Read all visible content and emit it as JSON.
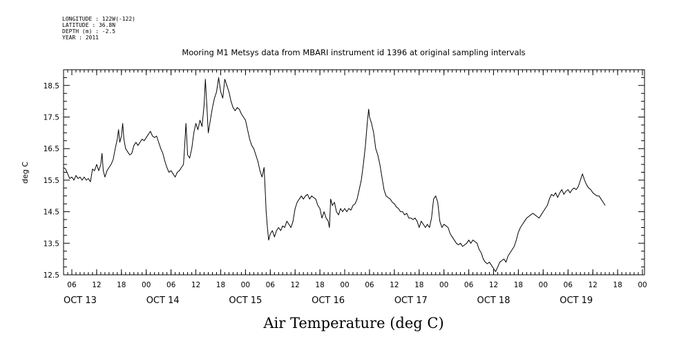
{
  "header": {
    "meta_lines": [
      "LONGITUDE : 122W(-122)",
      "LATITUDE : 36.8N",
      "DEPTH (m) : -2.5",
      "YEAR : 2011"
    ],
    "title": "Mooring M1 Metsys data from MBARI instrument id 1396 at original sampling intervals"
  },
  "chart_data": {
    "type": "line",
    "title": "Mooring M1 Metsys data from MBARI instrument id 1396 at original sampling intervals",
    "xlabel": "Air Temperature (deg C)",
    "ylabel": "deg C",
    "x_unit": "hours since OCT 13 2011 00:00",
    "xlim": [
      4,
      144.5
    ],
    "ylim": [
      12.5,
      19.0
    ],
    "yticks": [
      12.5,
      13.5,
      14.5,
      15.5,
      16.5,
      17.5,
      18.5
    ],
    "ytick_labels": [
      "12.5",
      "13.5",
      "14.5",
      "15.5",
      "16.5",
      "17.5",
      "18.5"
    ],
    "hour_ticks": [
      6,
      12,
      18,
      24,
      30,
      36,
      42,
      48,
      54,
      60,
      66,
      72,
      78,
      84,
      90,
      96,
      102,
      108,
      114,
      120,
      126,
      132,
      138,
      144
    ],
    "hour_tick_labels": [
      "06",
      "12",
      "18",
      "00",
      "06",
      "12",
      "18",
      "00",
      "06",
      "12",
      "18",
      "00",
      "06",
      "12",
      "18",
      "00",
      "06",
      "12",
      "18",
      "00",
      "06",
      "12",
      "18",
      "00"
    ],
    "days": [
      {
        "label": "OCT 13",
        "x": 8
      },
      {
        "label": "OCT 14",
        "x": 28
      },
      {
        "label": "OCT 15",
        "x": 48
      },
      {
        "label": "OCT 16",
        "x": 68
      },
      {
        "label": "OCT 17",
        "x": 88
      },
      {
        "label": "OCT 18",
        "x": 108
      },
      {
        "label": "OCT 19",
        "x": 128
      }
    ],
    "grid": false,
    "series": [
      {
        "color": "#000000",
        "points": [
          [
            4.0,
            15.9
          ],
          [
            4.5,
            15.85
          ],
          [
            5.0,
            15.7
          ],
          [
            5.5,
            15.55
          ],
          [
            6.0,
            15.6
          ],
          [
            6.5,
            15.5
          ],
          [
            7.0,
            15.65
          ],
          [
            7.5,
            15.55
          ],
          [
            8.0,
            15.6
          ],
          [
            8.5,
            15.5
          ],
          [
            9.0,
            15.6
          ],
          [
            9.5,
            15.5
          ],
          [
            10.0,
            15.55
          ],
          [
            10.5,
            15.45
          ],
          [
            11.0,
            15.85
          ],
          [
            11.5,
            15.8
          ],
          [
            12.0,
            16.0
          ],
          [
            12.5,
            15.8
          ],
          [
            13.0,
            16.0
          ],
          [
            13.3,
            16.35
          ],
          [
            13.6,
            15.8
          ],
          [
            14.0,
            15.6
          ],
          [
            14.5,
            15.8
          ],
          [
            15.0,
            15.9
          ],
          [
            15.5,
            16.0
          ],
          [
            16.0,
            16.15
          ],
          [
            16.5,
            16.5
          ],
          [
            17.0,
            16.8
          ],
          [
            17.3,
            17.1
          ],
          [
            17.6,
            16.7
          ],
          [
            18.0,
            16.9
          ],
          [
            18.3,
            17.3
          ],
          [
            18.6,
            16.8
          ],
          [
            19.0,
            16.5
          ],
          [
            19.5,
            16.4
          ],
          [
            20.0,
            16.3
          ],
          [
            20.5,
            16.35
          ],
          [
            21.0,
            16.6
          ],
          [
            21.5,
            16.7
          ],
          [
            22.0,
            16.6
          ],
          [
            22.5,
            16.7
          ],
          [
            23.0,
            16.8
          ],
          [
            23.5,
            16.75
          ],
          [
            24.0,
            16.85
          ],
          [
            24.5,
            16.95
          ],
          [
            25.0,
            17.05
          ],
          [
            25.5,
            16.9
          ],
          [
            26.0,
            16.85
          ],
          [
            26.5,
            16.9
          ],
          [
            27.0,
            16.7
          ],
          [
            27.5,
            16.5
          ],
          [
            28.0,
            16.35
          ],
          [
            28.5,
            16.1
          ],
          [
            29.0,
            15.9
          ],
          [
            29.5,
            15.75
          ],
          [
            30.0,
            15.8
          ],
          [
            30.5,
            15.7
          ],
          [
            31.0,
            15.6
          ],
          [
            31.5,
            15.75
          ],
          [
            32.0,
            15.8
          ],
          [
            32.5,
            15.9
          ],
          [
            33.0,
            16.0
          ],
          [
            33.3,
            16.6
          ],
          [
            33.6,
            17.3
          ],
          [
            34.0,
            16.3
          ],
          [
            34.5,
            16.2
          ],
          [
            35.0,
            16.5
          ],
          [
            35.5,
            17.0
          ],
          [
            36.0,
            17.3
          ],
          [
            36.5,
            17.1
          ],
          [
            37.0,
            17.4
          ],
          [
            37.5,
            17.2
          ],
          [
            38.0,
            17.9
          ],
          [
            38.3,
            18.7
          ],
          [
            38.6,
            18.0
          ],
          [
            39.0,
            17.0
          ],
          [
            39.5,
            17.4
          ],
          [
            40.0,
            17.8
          ],
          [
            40.5,
            18.1
          ],
          [
            41.0,
            18.3
          ],
          [
            41.5,
            18.75
          ],
          [
            42.0,
            18.3
          ],
          [
            42.5,
            18.1
          ],
          [
            43.0,
            18.7
          ],
          [
            43.5,
            18.5
          ],
          [
            44.0,
            18.3
          ],
          [
            44.5,
            18.0
          ],
          [
            45.0,
            17.8
          ],
          [
            45.5,
            17.7
          ],
          [
            46.0,
            17.8
          ],
          [
            46.5,
            17.75
          ],
          [
            47.0,
            17.6
          ],
          [
            47.5,
            17.5
          ],
          [
            48.0,
            17.4
          ],
          [
            48.5,
            17.1
          ],
          [
            49.0,
            16.8
          ],
          [
            49.5,
            16.6
          ],
          [
            50.0,
            16.5
          ],
          [
            50.5,
            16.3
          ],
          [
            51.0,
            16.1
          ],
          [
            51.5,
            15.8
          ],
          [
            52.0,
            15.6
          ],
          [
            52.5,
            15.9
          ],
          [
            52.8,
            15.1
          ],
          [
            53.0,
            14.5
          ],
          [
            53.3,
            14.0
          ],
          [
            53.6,
            13.6
          ],
          [
            54.0,
            13.8
          ],
          [
            54.5,
            13.9
          ],
          [
            55.0,
            13.7
          ],
          [
            55.5,
            13.9
          ],
          [
            56.0,
            14.0
          ],
          [
            56.5,
            13.9
          ],
          [
            57.0,
            14.05
          ],
          [
            57.5,
            14.0
          ],
          [
            58.0,
            14.2
          ],
          [
            58.5,
            14.1
          ],
          [
            59.0,
            14.0
          ],
          [
            59.5,
            14.2
          ],
          [
            60.0,
            14.6
          ],
          [
            60.5,
            14.8
          ],
          [
            61.0,
            14.9
          ],
          [
            61.5,
            15.0
          ],
          [
            62.0,
            14.9
          ],
          [
            62.5,
            15.0
          ],
          [
            63.0,
            15.05
          ],
          [
            63.5,
            14.9
          ],
          [
            64.0,
            15.0
          ],
          [
            64.5,
            14.95
          ],
          [
            65.0,
            14.9
          ],
          [
            65.5,
            14.7
          ],
          [
            66.0,
            14.6
          ],
          [
            66.5,
            14.3
          ],
          [
            67.0,
            14.5
          ],
          [
            67.5,
            14.3
          ],
          [
            68.0,
            14.2
          ],
          [
            68.3,
            14.0
          ],
          [
            68.6,
            14.9
          ],
          [
            69.0,
            14.7
          ],
          [
            69.5,
            14.8
          ],
          [
            70.0,
            14.5
          ],
          [
            70.5,
            14.4
          ],
          [
            71.0,
            14.6
          ],
          [
            71.5,
            14.5
          ],
          [
            72.0,
            14.6
          ],
          [
            72.5,
            14.5
          ],
          [
            73.0,
            14.6
          ],
          [
            73.5,
            14.55
          ],
          [
            74.0,
            14.7
          ],
          [
            74.5,
            14.75
          ],
          [
            75.0,
            14.9
          ],
          [
            75.5,
            15.2
          ],
          [
            76.0,
            15.5
          ],
          [
            76.5,
            16.0
          ],
          [
            77.0,
            16.6
          ],
          [
            77.5,
            17.4
          ],
          [
            77.8,
            17.75
          ],
          [
            78.0,
            17.5
          ],
          [
            78.5,
            17.3
          ],
          [
            79.0,
            17.0
          ],
          [
            79.5,
            16.5
          ],
          [
            80.0,
            16.3
          ],
          [
            80.5,
            16.0
          ],
          [
            81.0,
            15.6
          ],
          [
            81.5,
            15.2
          ],
          [
            82.0,
            15.0
          ],
          [
            82.5,
            14.95
          ],
          [
            83.0,
            14.9
          ],
          [
            83.5,
            14.8
          ],
          [
            84.0,
            14.75
          ],
          [
            84.5,
            14.65
          ],
          [
            85.0,
            14.6
          ],
          [
            85.5,
            14.5
          ],
          [
            86.0,
            14.5
          ],
          [
            86.5,
            14.4
          ],
          [
            87.0,
            14.45
          ],
          [
            87.5,
            14.3
          ],
          [
            88.0,
            14.3
          ],
          [
            88.5,
            14.25
          ],
          [
            89.0,
            14.3
          ],
          [
            89.5,
            14.2
          ],
          [
            90.0,
            14.0
          ],
          [
            90.5,
            14.2
          ],
          [
            91.0,
            14.1
          ],
          [
            91.5,
            14.0
          ],
          [
            92.0,
            14.1
          ],
          [
            92.5,
            14.0
          ],
          [
            93.0,
            14.3
          ],
          [
            93.5,
            14.9
          ],
          [
            94.0,
            15.0
          ],
          [
            94.5,
            14.8
          ],
          [
            95.0,
            14.2
          ],
          [
            95.5,
            14.0
          ],
          [
            96.0,
            14.1
          ],
          [
            96.5,
            14.05
          ],
          [
            97.0,
            14.0
          ],
          [
            97.5,
            13.8
          ],
          [
            98.0,
            13.7
          ],
          [
            98.5,
            13.6
          ],
          [
            99.0,
            13.5
          ],
          [
            99.5,
            13.45
          ],
          [
            100.0,
            13.5
          ],
          [
            100.5,
            13.4
          ],
          [
            101.0,
            13.45
          ],
          [
            101.5,
            13.5
          ],
          [
            102.0,
            13.6
          ],
          [
            102.5,
            13.5
          ],
          [
            103.0,
            13.6
          ],
          [
            103.5,
            13.55
          ],
          [
            104.0,
            13.5
          ],
          [
            104.5,
            13.3
          ],
          [
            105.0,
            13.2
          ],
          [
            105.5,
            13.0
          ],
          [
            106.0,
            12.9
          ],
          [
            106.5,
            12.85
          ],
          [
            107.0,
            12.9
          ],
          [
            107.5,
            12.8
          ],
          [
            108.0,
            12.7
          ],
          [
            108.5,
            12.6
          ],
          [
            109.0,
            12.75
          ],
          [
            109.5,
            12.9
          ],
          [
            110.0,
            12.95
          ],
          [
            110.5,
            13.0
          ],
          [
            111.0,
            12.9
          ],
          [
            111.5,
            13.1
          ],
          [
            112.0,
            13.2
          ],
          [
            112.5,
            13.3
          ],
          [
            113.0,
            13.4
          ],
          [
            113.5,
            13.6
          ],
          [
            114.0,
            13.85
          ],
          [
            114.5,
            14.0
          ],
          [
            115.0,
            14.1
          ],
          [
            115.5,
            14.2
          ],
          [
            116.0,
            14.3
          ],
          [
            116.5,
            14.35
          ],
          [
            117.0,
            14.4
          ],
          [
            117.5,
            14.45
          ],
          [
            118.0,
            14.4
          ],
          [
            118.5,
            14.35
          ],
          [
            119.0,
            14.3
          ],
          [
            119.5,
            14.4
          ],
          [
            120.0,
            14.5
          ],
          [
            120.5,
            14.6
          ],
          [
            121.0,
            14.7
          ],
          [
            121.5,
            14.9
          ],
          [
            122.0,
            15.05
          ],
          [
            122.5,
            15.0
          ],
          [
            123.0,
            15.1
          ],
          [
            123.5,
            14.95
          ],
          [
            124.0,
            15.1
          ],
          [
            124.5,
            15.2
          ],
          [
            125.0,
            15.05
          ],
          [
            125.5,
            15.15
          ],
          [
            126.0,
            15.2
          ],
          [
            126.5,
            15.1
          ],
          [
            127.0,
            15.2
          ],
          [
            127.5,
            15.25
          ],
          [
            128.0,
            15.2
          ],
          [
            128.5,
            15.3
          ],
          [
            129.0,
            15.5
          ],
          [
            129.5,
            15.7
          ],
          [
            130.0,
            15.5
          ],
          [
            130.5,
            15.35
          ],
          [
            131.0,
            15.25
          ],
          [
            131.5,
            15.2
          ],
          [
            132.0,
            15.1
          ],
          [
            132.5,
            15.05
          ],
          [
            133.0,
            15.0
          ],
          [
            133.5,
            15.0
          ],
          [
            134.0,
            14.9
          ],
          [
            134.5,
            14.8
          ],
          [
            135.0,
            14.7
          ]
        ]
      }
    ]
  }
}
